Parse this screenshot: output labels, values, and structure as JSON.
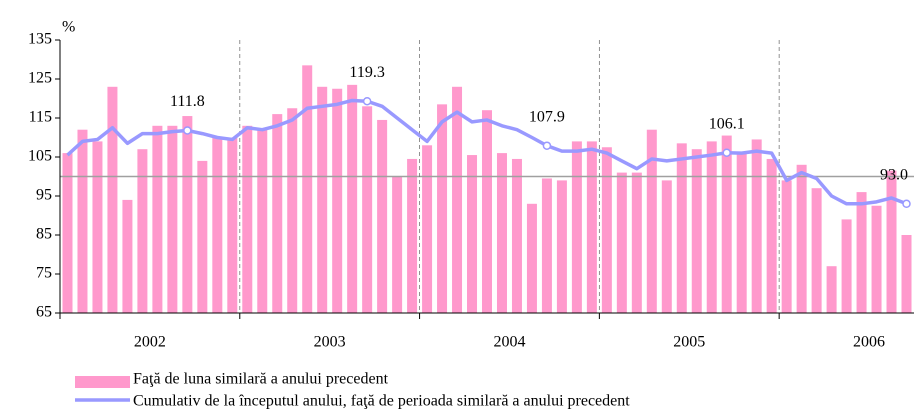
{
  "chart_data": {
    "type": "bar_line",
    "y_label": "%",
    "ylim": [
      65,
      135
    ],
    "yticks": [
      65,
      75,
      85,
      95,
      105,
      115,
      125,
      135
    ],
    "reference_line": 100,
    "groups": [
      "2002",
      "2003",
      "2004",
      "2005",
      "2006"
    ],
    "series": [
      {
        "name": "Faţă de luna similară a anului precedent",
        "kind": "bar",
        "color": "#ff99cc",
        "values": [
          106,
          112,
          109,
          123,
          94,
          107,
          113,
          113,
          115.5,
          104,
          110,
          110,
          113,
          112,
          116,
          117.5,
          128.5,
          123,
          122.5,
          123.5,
          118,
          114.5,
          100,
          104.5,
          108,
          118.5,
          123,
          105.5,
          117,
          106,
          104.5,
          93,
          99.5,
          99,
          109,
          109,
          107.5,
          101,
          101,
          112,
          99,
          108.5,
          107,
          109,
          110.5,
          106,
          109.5,
          104.5,
          99,
          103,
          97,
          77,
          89,
          96,
          92.5,
          101.5,
          85
        ]
      },
      {
        "name": "Cumulativ de la începutul anului, faţă de perioada similară a anului precedent",
        "kind": "line",
        "color": "#9999ff",
        "values": [
          105.5,
          109,
          109.5,
          112.5,
          108.5,
          111,
          111,
          111.5,
          111.8,
          111,
          110,
          109.5,
          112.5,
          112,
          113,
          114.5,
          117.5,
          118,
          118.5,
          119.5,
          119.3,
          118,
          115,
          112,
          109,
          114,
          116.5,
          114,
          114.5,
          113,
          112,
          110,
          107.9,
          106.5,
          106.5,
          107,
          106,
          104,
          102,
          104.5,
          104,
          104.5,
          105,
          105.5,
          106.1,
          106,
          106.5,
          106,
          99,
          101,
          99.5,
          95,
          93,
          93,
          93.5,
          94.5,
          93
        ],
        "value_labels": [
          null,
          null,
          null,
          null,
          null,
          null,
          null,
          null,
          "111.8",
          null,
          null,
          null,
          null,
          null,
          null,
          null,
          null,
          null,
          null,
          null,
          "119.3",
          null,
          null,
          null,
          null,
          null,
          null,
          null,
          null,
          null,
          null,
          null,
          "107.9",
          null,
          null,
          null,
          null,
          null,
          null,
          null,
          null,
          null,
          null,
          null,
          "106.1",
          null,
          null,
          null,
          null,
          null,
          null,
          null,
          null,
          null,
          null,
          null,
          "93.0"
        ]
      }
    ]
  }
}
